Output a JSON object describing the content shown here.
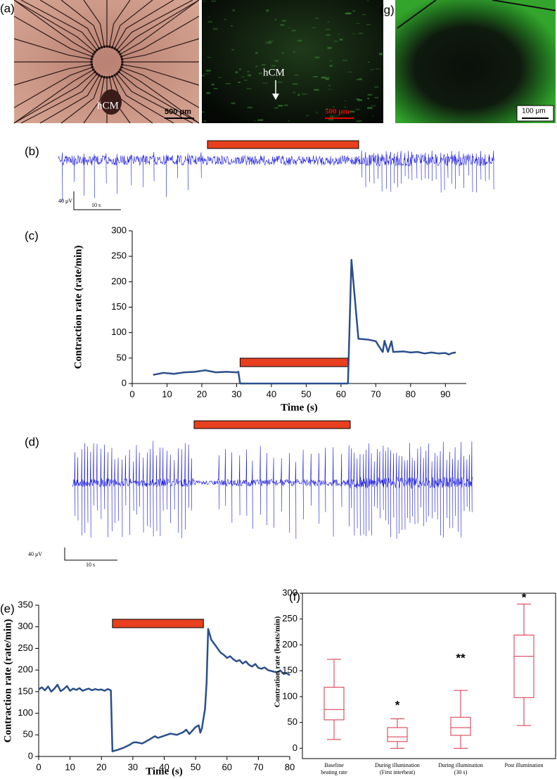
{
  "figure": {
    "a": {
      "label": "(a)",
      "cell_left": "hCM",
      "scale_left": "500 μm",
      "cell_right": "hCM",
      "scale_right": "500 μm"
    },
    "g": {
      "label": "(g)",
      "scale": "100 μm"
    },
    "b": {
      "label": "(b)",
      "scale_v": "40 μV",
      "scale_t": "10 s"
    },
    "c": {
      "label": "(c)"
    },
    "d": {
      "label": "(d)",
      "scale_v": "40 μV",
      "scale_t": "10 s"
    },
    "e": {
      "label": "(e)"
    },
    "f": {
      "label": "(f)"
    }
  },
  "chart_data": [
    {
      "type": "line",
      "xlabel": "Time (s)",
      "ylabel": "Contraction rate (rate/min)",
      "color": "#2a4f8c",
      "xlim": [
        0,
        96
      ],
      "xticks": [
        0,
        10,
        20,
        30,
        40,
        50,
        60,
        70,
        80,
        90
      ],
      "ylim": [
        0,
        300
      ],
      "yticks": [
        0,
        50,
        100,
        150,
        200,
        250,
        300
      ],
      "highlight": [
        31,
        62
      ],
      "x": [
        6,
        9,
        12,
        15,
        18,
        21,
        24,
        27,
        30,
        30.5,
        31,
        40,
        50,
        62,
        63,
        65,
        68,
        70,
        71,
        72,
        72.5,
        73.5,
        74.5,
        75,
        78,
        80,
        82,
        84,
        86,
        88,
        90,
        91,
        92,
        93
      ],
      "values": [
        17,
        21,
        19,
        22,
        23,
        26,
        22,
        23,
        22,
        23,
        0,
        0,
        0,
        0,
        243,
        88,
        86,
        83,
        72,
        62,
        84,
        62,
        83,
        62,
        63,
        61,
        62,
        59,
        61,
        59,
        60,
        57,
        60,
        61
      ]
    },
    {
      "type": "line",
      "xlabel": "Time (s)",
      "ylabel": "Contraction rate (rate/min)",
      "color": "#2a4f8c",
      "xlim": [
        0,
        80
      ],
      "xticks": [
        0,
        10,
        20,
        30,
        40,
        50,
        60,
        70,
        80
      ],
      "ylim": [
        0,
        350
      ],
      "yticks": [
        0,
        50,
        100,
        150,
        200,
        250,
        300,
        350
      ],
      "highlight": [
        23.5,
        52.5
      ],
      "x": [
        0,
        1,
        2,
        3,
        4,
        5,
        6,
        7,
        8,
        9,
        10,
        11,
        12,
        13,
        14,
        15,
        16,
        17,
        18,
        19,
        20,
        21,
        22,
        23,
        23.5,
        25,
        27,
        29,
        30,
        31,
        33,
        35,
        37,
        38,
        40,
        42,
        44,
        46,
        47,
        48,
        49,
        50,
        51,
        51.5,
        52,
        53,
        53.5,
        54,
        55,
        56,
        57,
        58,
        59,
        60,
        61,
        62,
        63,
        64,
        65,
        66,
        67,
        68,
        69,
        70,
        71,
        72,
        73,
        74,
        75,
        76,
        77,
        78,
        79,
        80
      ],
      "values": [
        155,
        160,
        153,
        162,
        150,
        157,
        166,
        151,
        156,
        163,
        152,
        157,
        154,
        158,
        152,
        155,
        157,
        153,
        156,
        154,
        155,
        152,
        156,
        153,
        12,
        15,
        20,
        27,
        32,
        33,
        30,
        38,
        47,
        43,
        48,
        53,
        50,
        56,
        62,
        52,
        60,
        68,
        72,
        55,
        65,
        110,
        170,
        295,
        270,
        260,
        250,
        240,
        235,
        228,
        232,
        225,
        220,
        223,
        215,
        220,
        212,
        208,
        214,
        205,
        203,
        206,
        200,
        198,
        196,
        195,
        199,
        191,
        193,
        188
      ]
    },
    {
      "type": "box",
      "ylabel": "Contration rate (beats/min)",
      "color": "#d9304a",
      "ylim": [
        -20,
        300
      ],
      "yticks": [
        0,
        50,
        100,
        150,
        200,
        250,
        300
      ],
      "categories": [
        [
          "Baseline",
          "beating rate"
        ],
        [
          "During illumination",
          "(First interbeat)"
        ],
        [
          "During illumination",
          "(30 s)"
        ],
        [
          "Post illumination"
        ]
      ],
      "boxes": [
        {
          "min": 17,
          "q1": 55,
          "median": 75,
          "q3": 118,
          "max": 172
        },
        {
          "min": 0,
          "q1": 13,
          "median": 22,
          "q3": 40,
          "max": 57
        },
        {
          "min": 0,
          "q1": 25,
          "median": 40,
          "q3": 60,
          "max": 112
        },
        {
          "min": 44,
          "q1": 98,
          "median": 178,
          "q3": 219,
          "max": 279
        }
      ],
      "significance": [
        null,
        "*",
        "**",
        "*"
      ]
    }
  ]
}
